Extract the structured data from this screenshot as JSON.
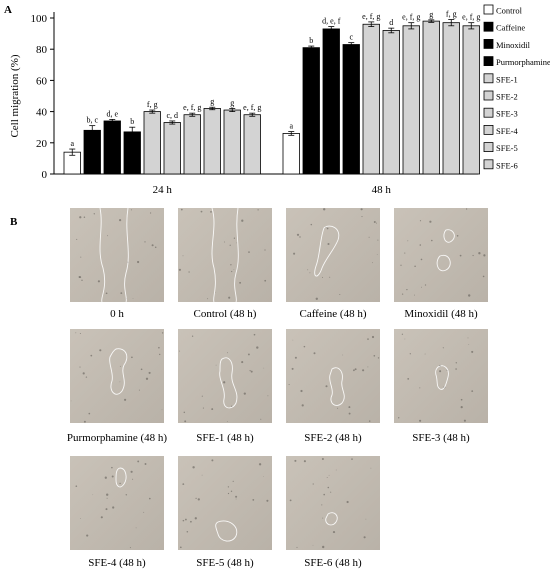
{
  "panel_a": {
    "letter": "A",
    "chart_data": {
      "type": "bar",
      "ylabel": "Cell migration (%)",
      "xlabel": "",
      "ylim": [
        0,
        100
      ],
      "yticks": [
        0,
        20,
        40,
        60,
        80,
        100
      ],
      "categories": [
        "24 h",
        "48 h"
      ],
      "grid": false,
      "legend_position": "right",
      "series": [
        {
          "name": "Control",
          "color": "#ffffff",
          "values": [
            14,
            26
          ],
          "errors": [
            2,
            1.2
          ],
          "labels": [
            "a",
            "a"
          ]
        },
        {
          "name": "Caffeine",
          "color": "#000000",
          "values": [
            28,
            81
          ],
          "errors": [
            3,
            1
          ],
          "labels": [
            "b, c",
            "b"
          ]
        },
        {
          "name": "Minoxidil",
          "color": "#000000",
          "values": [
            34,
            93
          ],
          "errors": [
            1,
            1.5
          ],
          "labels": [
            "d, e",
            "d, e, f"
          ]
        },
        {
          "name": "Purmorphamine",
          "color": "#000000",
          "values": [
            27,
            83
          ],
          "errors": [
            3,
            1.2
          ],
          "labels": [
            "b",
            "c"
          ]
        },
        {
          "name": "SFE-1",
          "color": "#d3d3d3",
          "values": [
            40,
            96
          ],
          "errors": [
            1,
            1.5
          ],
          "labels": [
            "f, g",
            "e, f, g"
          ]
        },
        {
          "name": "SFE-2",
          "color": "#d3d3d3",
          "values": [
            33,
            92
          ],
          "errors": [
            1,
            1.5
          ],
          "labels": [
            "c, d",
            "d"
          ]
        },
        {
          "name": "SFE-3",
          "color": "#d3d3d3",
          "values": [
            38,
            95
          ],
          "errors": [
            1,
            2
          ],
          "labels": [
            "e, f, g",
            "e, f, g"
          ]
        },
        {
          "name": "SFE-4",
          "color": "#d3d3d3",
          "values": [
            42,
            98
          ],
          "errors": [
            0.8,
            0.8
          ],
          "labels": [
            "g",
            "g"
          ]
        },
        {
          "name": "SFE-5",
          "color": "#d3d3d3",
          "values": [
            41,
            97
          ],
          "errors": [
            1,
            2
          ],
          "labels": [
            "g",
            "f, g"
          ]
        },
        {
          "name": "SFE-6",
          "color": "#d3d3d3",
          "values": [
            38,
            95
          ],
          "errors": [
            1,
            2
          ],
          "labels": [
            "e, f, g",
            "e, f, g"
          ]
        }
      ]
    }
  },
  "panel_b": {
    "letter": "B",
    "images": [
      {
        "caption": "0 h"
      },
      {
        "caption": "Control (48 h)"
      },
      {
        "caption": "Caffeine (48 h)"
      },
      {
        "caption": "Minoxidil (48 h)"
      },
      {
        "caption": "Purmorphamine (48 h)"
      },
      {
        "caption": "SFE-1 (48 h)"
      },
      {
        "caption": "SFE-2 (48 h)"
      },
      {
        "caption": "SFE-3 (48 h)"
      },
      {
        "caption": "SFE-4 (48 h)"
      },
      {
        "caption": "SFE-5 (48 h)"
      },
      {
        "caption": "SFE-6 (48 h)"
      }
    ]
  }
}
